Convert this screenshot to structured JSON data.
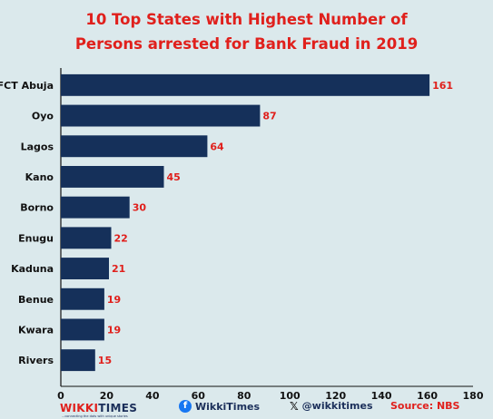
{
  "chart_data": {
    "type": "bar",
    "orientation": "horizontal",
    "title_lines": [
      "10 Top States with Highest Number of",
      "Persons arrested for Bank Fraud in 2019"
    ],
    "categories": [
      "FCT Abuja",
      "Oyo",
      "Lagos",
      "Kano",
      "Borno",
      "Enugu",
      "Kaduna",
      "Benue",
      "Kwara",
      "Rivers"
    ],
    "values": [
      161,
      87,
      64,
      45,
      30,
      22,
      21,
      19,
      19,
      15
    ],
    "xlim": [
      0,
      180
    ],
    "xticks": [
      0,
      20,
      40,
      60,
      80,
      100,
      120,
      140,
      160,
      180
    ],
    "xlabel": "",
    "ylabel": "",
    "grid": false,
    "bar_color": "#15305a",
    "value_label_color": "#e0201c"
  },
  "colors": {
    "background": "#dbe9ec",
    "title": "#e0201c",
    "bar": "#15305a",
    "text": "#1b2f5a"
  },
  "footer": {
    "brand_prefix": "WIKKI",
    "brand_suffix": "TIMES",
    "brand_tagline": "...connecting the dots with unique stories",
    "facebook_icon": "facebook-icon",
    "facebook_handle": "WikkiTimes",
    "x_icon": "x-icon",
    "x_handle": "@wikkitimes",
    "source": "Source: NBS"
  }
}
